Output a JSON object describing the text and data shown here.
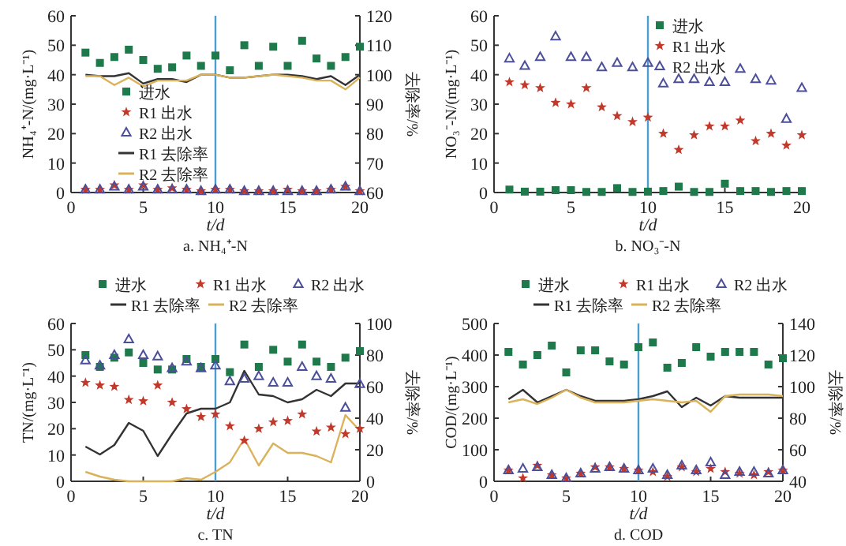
{
  "chart_data": [
    {
      "type": "scatter",
      "title": "a. NH₄⁺-N",
      "xlabel": "t/d",
      "ylabel": "NH₄⁺-N/(mg·L⁻¹)",
      "y2label": "去除率/%",
      "legend": "left",
      "x": [
        1,
        2,
        3,
        4,
        5,
        6,
        7,
        8,
        9,
        10,
        11,
        12,
        13,
        14,
        15,
        16,
        17,
        18,
        19,
        20
      ],
      "xlim": [
        0,
        20
      ],
      "xticks": [
        0,
        5,
        10,
        15,
        20
      ],
      "ylim": [
        0,
        60
      ],
      "yticks": [
        0,
        10,
        20,
        30,
        40,
        50,
        60
      ],
      "y2lim": [
        60,
        120
      ],
      "y2ticks": [
        60,
        70,
        80,
        90,
        100,
        110,
        120
      ],
      "ref_lines": [
        {
          "axis": "x",
          "value": 10,
          "color": "#4a9fd0"
        }
      ],
      "series": [
        {
          "name": "进水",
          "marker": "square",
          "color": "#1e7a4a",
          "values": [
            47.5,
            44,
            46,
            48.5,
            45,
            42,
            42.5,
            46.5,
            43,
            46.5,
            41.5,
            50,
            43,
            49.5,
            43,
            51.5,
            45.5,
            43,
            46,
            49.5
          ]
        },
        {
          "name": "R1 出水",
          "marker": "star",
          "color": "#c0392b",
          "values": [
            1,
            1,
            2.5,
            1,
            2.5,
            1,
            1.5,
            1,
            0.5,
            1,
            1,
            0.5,
            0.5,
            0.5,
            1,
            0.5,
            0.5,
            1,
            2,
            0.5
          ]
        },
        {
          "name": "R2 出水",
          "marker": "triangle",
          "color": "#4b4f9a",
          "values": [
            1,
            1,
            2,
            1,
            2,
            1,
            1,
            1,
            0.5,
            1,
            1,
            0.5,
            0.5,
            0.5,
            0.5,
            0.5,
            0.5,
            1,
            2,
            0.5
          ]
        },
        {
          "name": "R1 去除率",
          "type": "line",
          "axis": "y2",
          "color": "#333333",
          "values": [
            100,
            99.5,
            99.5,
            100.5,
            97,
            98.5,
            98.5,
            97.5,
            100,
            100,
            99,
            99,
            99.5,
            100,
            100,
            99.5,
            98.5,
            99.5,
            96.5,
            100
          ]
        },
        {
          "name": "R2 去除率",
          "type": "line",
          "axis": "y2",
          "color": "#d9b25a",
          "values": [
            99.5,
            99.5,
            96.5,
            99,
            96,
            98,
            98,
            98,
            100,
            100,
            99,
            99,
            99.5,
            100,
            99.5,
            99,
            98,
            98,
            95,
            99
          ]
        }
      ]
    },
    {
      "type": "scatter",
      "title": "b. NO₃⁻-N",
      "xlabel": "t/d",
      "ylabel": "NO₃⁻-N/(mg·L⁻¹)",
      "legend": "top right",
      "x": [
        1,
        2,
        3,
        4,
        5,
        6,
        7,
        8,
        9,
        10,
        11,
        12,
        13,
        14,
        15,
        16,
        17,
        18,
        19,
        20
      ],
      "xlim": [
        0,
        20
      ],
      "xticks": [
        0,
        5,
        10,
        15,
        20
      ],
      "ylim": [
        0,
        60
      ],
      "yticks": [
        0,
        10,
        20,
        30,
        40,
        50,
        60
      ],
      "ref_lines": [
        {
          "axis": "x",
          "value": 10,
          "color": "#4a9fd0"
        }
      ],
      "series": [
        {
          "name": "进水",
          "marker": "square",
          "color": "#1e7a4a",
          "values": [
            1,
            0.3,
            0.3,
            0.8,
            0.8,
            0.2,
            0.2,
            1.5,
            0.2,
            0.3,
            0.5,
            2,
            0.2,
            0.2,
            3,
            0.5,
            0.5,
            0.2,
            0.5,
            0.5
          ]
        },
        {
          "name": "R1 出水",
          "marker": "star",
          "color": "#c0392b",
          "values": [
            37.5,
            36.5,
            35.5,
            30.5,
            30,
            35.5,
            29,
            26,
            24,
            25.5,
            20,
            14.5,
            19.5,
            22.5,
            22.5,
            24.5,
            17.5,
            20,
            16,
            19.5
          ]
        },
        {
          "name": "R2 出水",
          "marker": "triangle",
          "color": "#4b4f9a",
          "values": [
            45.5,
            43,
            46,
            53,
            46,
            46,
            42.5,
            44,
            42.5,
            44,
            37,
            38.5,
            38.5,
            37.5,
            37.5,
            42,
            38.5,
            38,
            25,
            35.5
          ]
        }
      ]
    },
    {
      "type": "scatter",
      "title": "c. TN",
      "xlabel": "t/d",
      "ylabel": "TN/(mg·L⁻¹)",
      "y2label": "去除率/%",
      "legend": "top",
      "x": [
        1,
        2,
        3,
        4,
        5,
        6,
        7,
        8,
        9,
        10,
        11,
        12,
        13,
        14,
        15,
        16,
        17,
        18,
        19,
        20
      ],
      "xlim": [
        0,
        20
      ],
      "xticks": [
        0,
        5,
        10,
        15,
        20
      ],
      "ylim": [
        0,
        60
      ],
      "yticks": [
        0,
        10,
        20,
        30,
        40,
        50,
        60
      ],
      "y2lim": [
        0,
        100
      ],
      "y2ticks": [
        0,
        20,
        40,
        60,
        80,
        100
      ],
      "ref_lines": [
        {
          "axis": "x",
          "value": 10,
          "color": "#4a9fd0"
        }
      ],
      "series": [
        {
          "name": "进水",
          "marker": "square",
          "color": "#1e7a4a",
          "values": [
            48,
            43.5,
            47,
            49,
            45,
            42.5,
            42.5,
            46.5,
            43.5,
            46.5,
            41.5,
            52,
            43.5,
            50,
            45.5,
            52,
            45.5,
            43.5,
            47,
            49.5
          ]
        },
        {
          "name": "R1 出水",
          "marker": "star",
          "color": "#c0392b",
          "values": [
            37.5,
            36.5,
            36,
            31,
            30.5,
            36.5,
            30,
            27.5,
            24.5,
            25.5,
            21,
            15.5,
            20,
            22.5,
            23,
            25.5,
            19,
            20.5,
            18,
            20
          ]
        },
        {
          "name": "R2 出水",
          "marker": "triangle",
          "color": "#4b4f9a",
          "values": [
            46,
            44,
            48,
            54,
            48,
            47.5,
            43,
            45.5,
            43,
            44,
            38,
            39,
            40,
            37.5,
            37.5,
            43.5,
            40,
            39,
            28,
            37
          ]
        },
        {
          "name": "R1 去除率",
          "type": "line",
          "axis": "y2",
          "color": "#333333",
          "values": [
            22,
            17,
            23,
            37,
            32,
            16,
            30,
            43,
            46,
            46,
            50,
            70,
            55,
            54,
            50,
            52,
            58,
            54,
            62,
            62
          ]
        },
        {
          "name": "R2 去除率",
          "type": "line",
          "axis": "y2",
          "color": "#d9b25a",
          "values": [
            6,
            3,
            1,
            0,
            0,
            0,
            0,
            2,
            1,
            6,
            12,
            27,
            10,
            24,
            18,
            18,
            16,
            12,
            42,
            32
          ]
        }
      ]
    },
    {
      "type": "scatter",
      "title": "d. COD",
      "xlabel": "t/d",
      "ylabel": "COD/(mg·L⁻¹)",
      "y2label": "去除率/%",
      "legend": "top",
      "x": [
        1,
        2,
        3,
        4,
        5,
        6,
        7,
        8,
        9,
        10,
        11,
        12,
        13,
        14,
        15,
        16,
        17,
        18,
        19,
        20
      ],
      "xlim": [
        0,
        20
      ],
      "xticks": [
        0,
        5,
        10,
        15,
        20
      ],
      "ylim": [
        0,
        500
      ],
      "yticks": [
        0,
        100,
        200,
        300,
        400,
        500
      ],
      "y2lim": [
        40,
        140
      ],
      "y2ticks": [
        40,
        60,
        80,
        100,
        120,
        140
      ],
      "ref_lines": [
        {
          "axis": "x",
          "value": 10,
          "color": "#4a9fd0"
        }
      ],
      "series": [
        {
          "name": "进水",
          "marker": "square",
          "color": "#1e7a4a",
          "values": [
            410,
            370,
            400,
            430,
            345,
            415,
            415,
            380,
            370,
            425,
            440,
            360,
            375,
            425,
            395,
            410,
            410,
            410,
            370,
            390
          ]
        },
        {
          "name": "R1 出水",
          "marker": "star",
          "color": "#c0392b",
          "values": [
            35,
            10,
            50,
            20,
            10,
            25,
            45,
            45,
            40,
            35,
            30,
            15,
            45,
            30,
            40,
            30,
            25,
            20,
            30,
            35
          ]
        },
        {
          "name": "R2 出水",
          "marker": "triangle",
          "color": "#4b4f9a",
          "values": [
            35,
            40,
            45,
            20,
            10,
            25,
            40,
            45,
            40,
            35,
            40,
            20,
            50,
            35,
            60,
            20,
            30,
            30,
            25,
            35
          ]
        },
        {
          "name": "R1 去除率",
          "type": "line",
          "axis": "y2",
          "color": "#333333",
          "values": [
            92,
            98,
            90,
            94,
            98,
            94,
            91,
            91,
            91,
            92,
            94,
            97,
            87,
            93,
            88,
            94,
            93,
            93,
            93,
            93
          ]
        },
        {
          "name": "R2 去除率",
          "type": "line",
          "axis": "y2",
          "color": "#d9b25a",
          "values": [
            90,
            92,
            89,
            93,
            98,
            93,
            90,
            90,
            90,
            91,
            92,
            91,
            90,
            91,
            84,
            94,
            95,
            95,
            95,
            94
          ]
        }
      ]
    }
  ]
}
